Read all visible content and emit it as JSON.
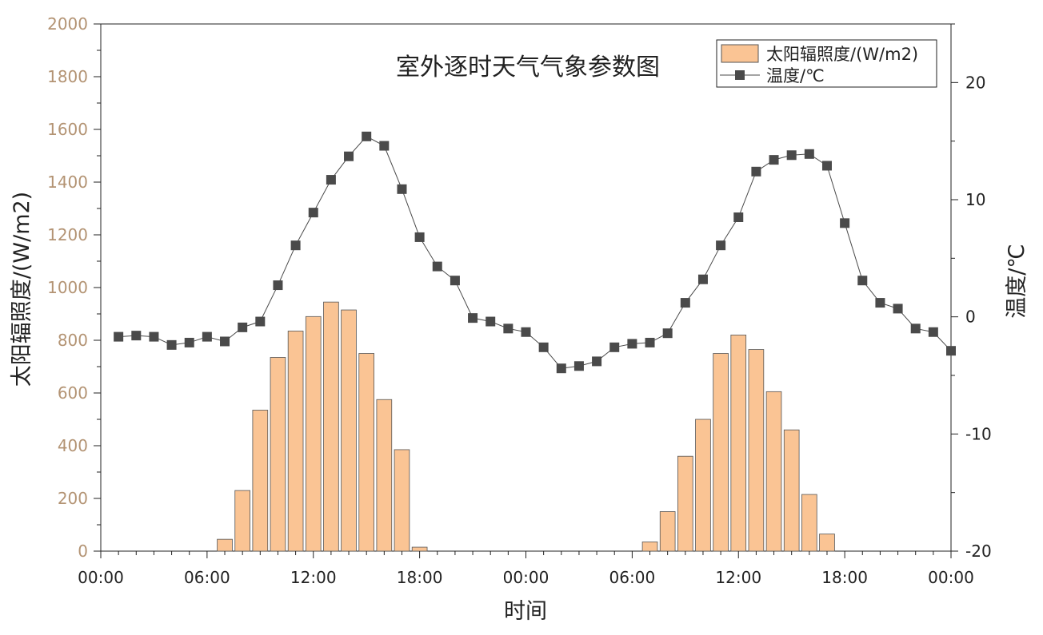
{
  "chart_data": {
    "type": "bar+line",
    "title": "室外逐时天气气象参数图",
    "xlabel": "时间",
    "ylabel_left": "太阳辐照度/(W/m2)",
    "ylabel_right": "温度/℃",
    "ylim_left": [
      0,
      2000
    ],
    "yticks_left": [
      0,
      200,
      400,
      600,
      800,
      1000,
      1200,
      1400,
      1600,
      1800,
      2000
    ],
    "ylim_right": [
      -20,
      25
    ],
    "yticks_right": [
      -20,
      -10,
      0,
      10,
      20
    ],
    "xlim_hours": [
      0,
      48
    ],
    "x_tick_labels": [
      "00:00",
      "06:00",
      "12:00",
      "18:00",
      "00:00",
      "06:00",
      "12:00",
      "18:00",
      "00:00"
    ],
    "legend_position": "top-right",
    "grid": false,
    "series": [
      {
        "name": "太阳辐照度/(W/m2)",
        "kind": "bar",
        "axis": "left",
        "color": "#FAC494",
        "hours": [
          7,
          8,
          9,
          10,
          11,
          12,
          13,
          14,
          15,
          16,
          17,
          18,
          31,
          32,
          33,
          34,
          35,
          36,
          37,
          38,
          39,
          40,
          41
        ],
        "values": [
          45,
          230,
          535,
          735,
          835,
          890,
          945,
          915,
          750,
          575,
          385,
          15,
          35,
          150,
          360,
          500,
          750,
          820,
          765,
          605,
          460,
          215,
          65
        ]
      },
      {
        "name": "温度/℃",
        "kind": "line",
        "axis": "right",
        "color": "#4a4a4a",
        "hours": [
          1,
          2,
          3,
          4,
          5,
          6,
          7,
          8,
          9,
          10,
          11,
          12,
          13,
          14,
          15,
          16,
          17,
          18,
          19,
          20,
          21,
          22,
          23,
          24,
          25,
          26,
          27,
          28,
          29,
          30,
          31,
          32,
          33,
          34,
          35,
          36,
          37,
          38,
          39,
          40,
          41,
          42,
          43,
          44,
          45,
          46,
          47,
          48
        ],
        "values": [
          -1.7,
          -1.6,
          -1.7,
          -2.4,
          -2.2,
          -1.7,
          -2.1,
          -0.9,
          -0.4,
          2.7,
          6.1,
          8.9,
          11.7,
          13.7,
          15.4,
          14.6,
          10.9,
          6.8,
          4.3,
          3.1,
          -0.1,
          -0.4,
          -1.0,
          -1.3,
          -2.6,
          -4.4,
          -4.2,
          -3.8,
          -2.6,
          -2.3,
          -2.2,
          -1.4,
          1.2,
          3.2,
          6.1,
          8.5,
          12.4,
          13.4,
          13.8,
          13.9,
          12.9,
          8.0,
          3.1,
          1.2,
          0.7,
          -1.0,
          -1.3,
          -2.9
        ]
      }
    ]
  }
}
